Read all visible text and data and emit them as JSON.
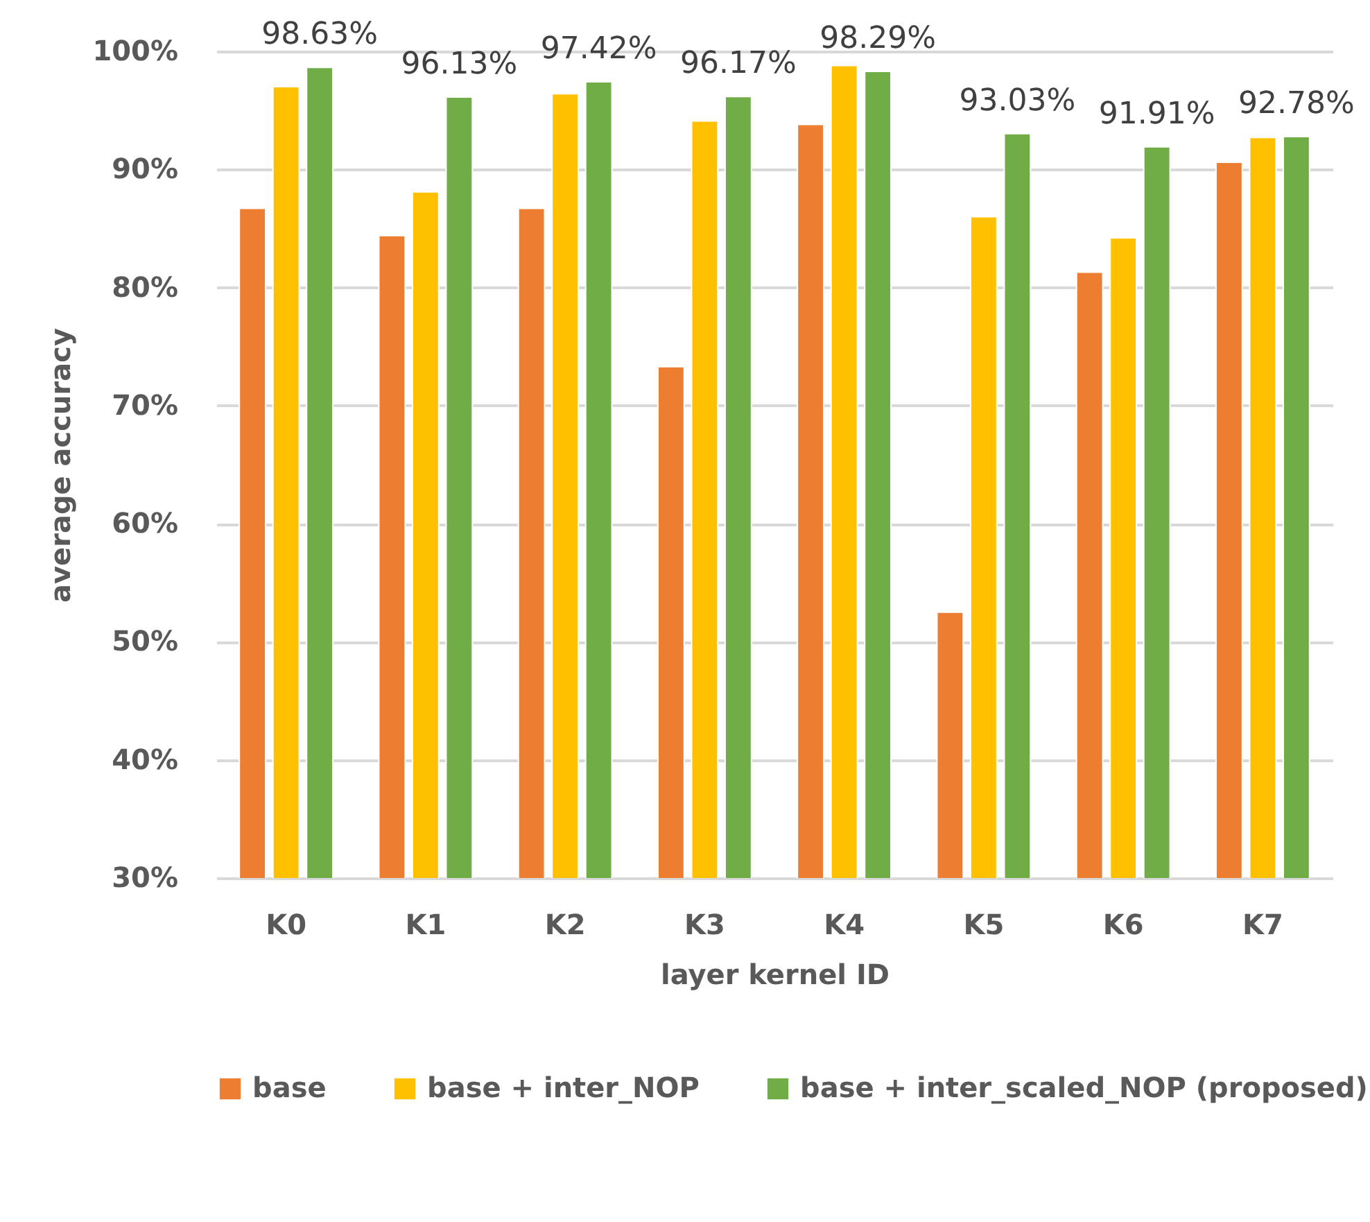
{
  "chart_data": {
    "type": "bar",
    "xlabel": "layer kernel ID",
    "ylabel": "average accuracy",
    "categories": [
      "K0",
      "K1",
      "K2",
      "K3",
      "K4",
      "K5",
      "K6",
      "K7"
    ],
    "series": [
      {
        "name": "base",
        "color": "#ed7d31",
        "values": [
          86.7,
          84.4,
          86.7,
          73.3,
          93.8,
          52.5,
          81.3,
          90.6
        ]
      },
      {
        "name": "base + inter_NOP",
        "color": "#ffc000",
        "values": [
          97.0,
          88.1,
          96.4,
          94.1,
          98.8,
          86.0,
          84.2,
          92.7
        ]
      },
      {
        "name": "base + inter_scaled_NOP (proposed)",
        "color": "#70ad47",
        "values": [
          98.63,
          96.13,
          97.42,
          96.17,
          98.29,
          93.03,
          91.91,
          92.78
        ],
        "value_labels": [
          "98.63%",
          "96.13%",
          "97.42%",
          "96.17%",
          "98.29%",
          "93.03%",
          "91.91%",
          "92.78%"
        ]
      }
    ],
    "ylim": [
      30,
      100
    ],
    "yticks": [
      {
        "value": 30,
        "label": "30%"
      },
      {
        "value": 40,
        "label": "40%"
      },
      {
        "value": 50,
        "label": "50%"
      },
      {
        "value": 60,
        "label": "60%"
      },
      {
        "value": 70,
        "label": "70%"
      },
      {
        "value": 80,
        "label": "80%"
      },
      {
        "value": 90,
        "label": "90%"
      },
      {
        "value": 100,
        "label": "100%"
      }
    ],
    "grid": "y",
    "legend": "bottom"
  }
}
